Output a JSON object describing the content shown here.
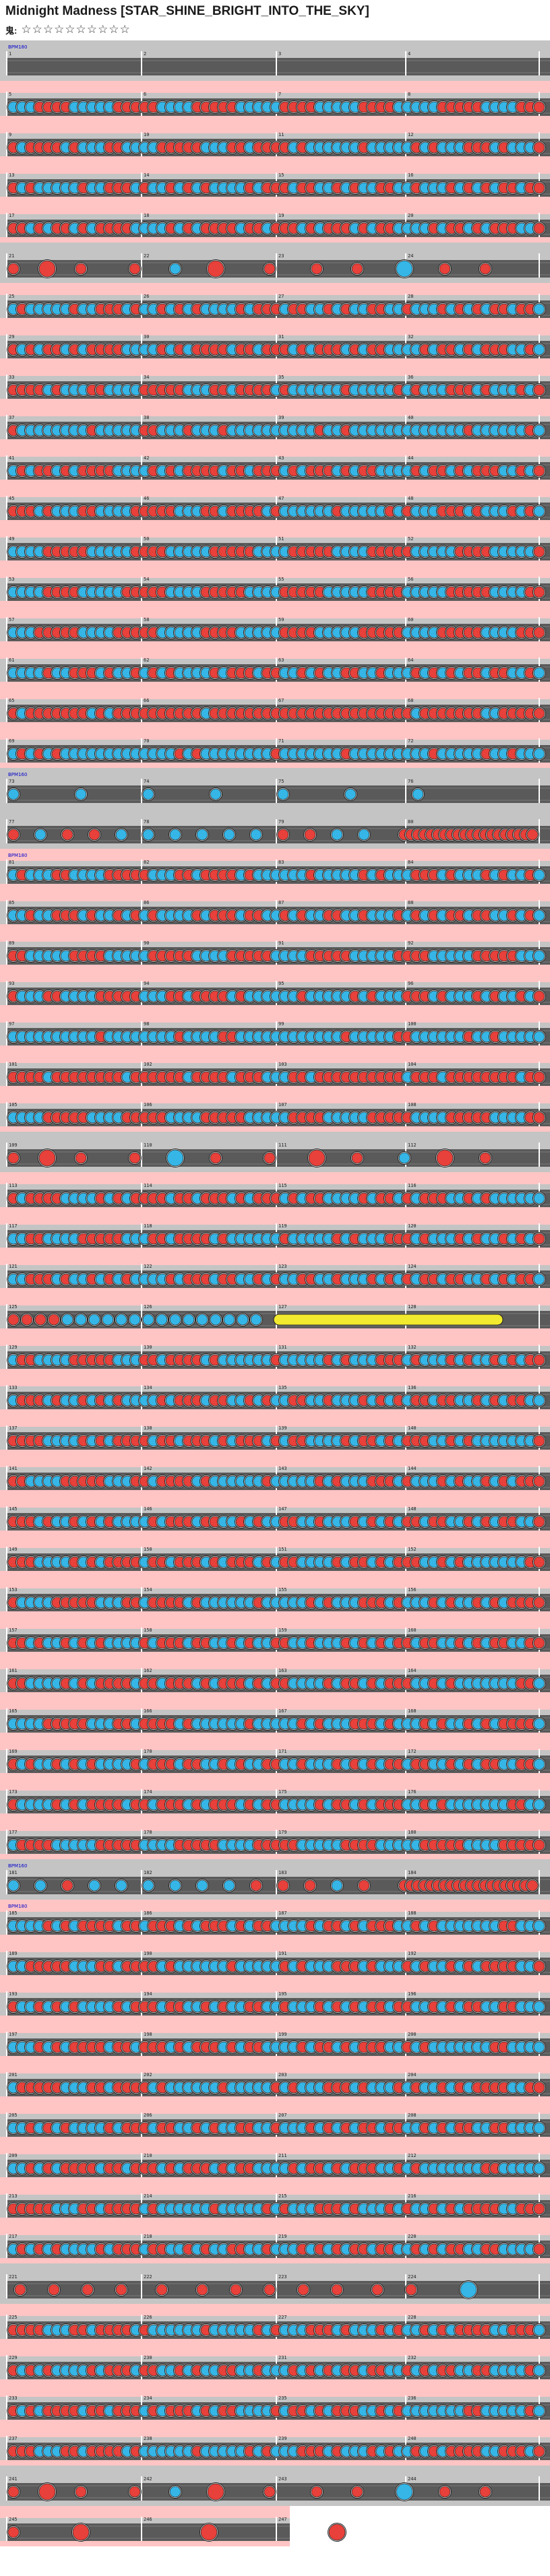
{
  "song": {
    "title": "Midnight Madness [STAR_SHINE_BRIGHT_INTO_THE_SKY]",
    "difficulty_label": "鬼:",
    "stars": "☆☆☆☆☆☆☆☆☆☆"
  },
  "chart_data": {
    "type": "other",
    "rows": [
      {
        "pattern": "empty",
        "notes": "",
        "tags": [
          "BPM180"
        ]
      },
      {
        "pattern": "mixed",
        "notes": "",
        "tags": []
      },
      {
        "pattern": "dense",
        "notes": "",
        "tags": []
      },
      {
        "pattern": "dense",
        "notes": "",
        "tags": []
      },
      {
        "pattern": "dense",
        "notes": "",
        "tags": []
      },
      {
        "pattern": "sparse",
        "notes": "",
        "tags": []
      },
      {
        "pattern": "dense",
        "notes": "",
        "tags": []
      },
      {
        "pattern": "dense",
        "notes": "",
        "tags": []
      },
      {
        "pattern": "dense",
        "notes": "",
        "tags": []
      },
      {
        "pattern": "bluerun",
        "notes": "",
        "tags": []
      },
      {
        "pattern": "dense",
        "notes": "",
        "tags": []
      },
      {
        "pattern": "dense",
        "notes": "",
        "tags": []
      },
      {
        "pattern": "mixed",
        "notes": "",
        "tags": []
      },
      {
        "pattern": "mixed",
        "notes": "",
        "tags": []
      },
      {
        "pattern": "mixed",
        "notes": "",
        "tags": []
      },
      {
        "pattern": "dense",
        "notes": "",
        "tags": []
      },
      {
        "pattern": "redrun",
        "notes": "",
        "tags": []
      },
      {
        "pattern": "bluerun",
        "notes": "",
        "tags": []
      },
      {
        "pattern": "light",
        "notes": "",
        "tags": [
          "BPM160"
        ]
      },
      {
        "pattern": "roll_end",
        "notes": "",
        "tags": []
      },
      {
        "pattern": "dense",
        "notes": "",
        "tags": [
          "BPM180"
        ]
      },
      {
        "pattern": "dense",
        "notes": "",
        "tags": []
      },
      {
        "pattern": "mixed",
        "notes": "",
        "tags": []
      },
      {
        "pattern": "dense",
        "notes": "",
        "tags": []
      },
      {
        "pattern": "bluerun",
        "notes": "",
        "tags": []
      },
      {
        "pattern": "redrun",
        "notes": "",
        "tags": []
      },
      {
        "pattern": "mixed",
        "notes": "",
        "tags": []
      },
      {
        "pattern": "sparse_big",
        "notes": "",
        "tags": []
      },
      {
        "pattern": "dense",
        "notes": "",
        "tags": []
      },
      {
        "pattern": "dense",
        "notes": "",
        "tags": []
      },
      {
        "pattern": "dense",
        "notes": "",
        "tags": []
      },
      {
        "pattern": "balloon",
        "notes": "",
        "tags": []
      },
      {
        "pattern": "dense",
        "notes": "",
        "tags": []
      },
      {
        "pattern": "dense",
        "notes": "",
        "tags": []
      },
      {
        "pattern": "dense",
        "notes": "",
        "tags": []
      },
      {
        "pattern": "dense",
        "notes": "",
        "tags": []
      },
      {
        "pattern": "dense",
        "notes": "",
        "tags": []
      },
      {
        "pattern": "dense",
        "notes": "",
        "tags": []
      },
      {
        "pattern": "dense",
        "notes": "",
        "tags": []
      },
      {
        "pattern": "dense",
        "notes": "",
        "tags": []
      },
      {
        "pattern": "dense",
        "notes": "",
        "tags": []
      },
      {
        "pattern": "dense",
        "notes": "",
        "tags": []
      },
      {
        "pattern": "dense",
        "notes": "",
        "tags": []
      },
      {
        "pattern": "dense",
        "notes": "",
        "tags": []
      },
      {
        "pattern": "mixed",
        "notes": "",
        "tags": []
      },
      {
        "pattern": "roll_end",
        "notes": "",
        "tags": [
          "BPM160"
        ]
      },
      {
        "pattern": "dense",
        "notes": "",
        "tags": [
          "BPM180"
        ]
      },
      {
        "pattern": "dense",
        "notes": "",
        "tags": []
      },
      {
        "pattern": "dense",
        "notes": "",
        "tags": []
      },
      {
        "pattern": "dense",
        "notes": "",
        "tags": []
      },
      {
        "pattern": "dense",
        "notes": "",
        "tags": []
      },
      {
        "pattern": "dense",
        "notes": "",
        "tags": []
      },
      {
        "pattern": "dense",
        "notes": "",
        "tags": []
      },
      {
        "pattern": "dense",
        "notes": "",
        "tags": []
      },
      {
        "pattern": "dense",
        "notes": "",
        "tags": []
      },
      {
        "pattern": "sparse_big_end",
        "notes": "",
        "tags": []
      },
      {
        "pattern": "dense",
        "notes": "",
        "tags": []
      },
      {
        "pattern": "dense",
        "notes": "",
        "tags": []
      },
      {
        "pattern": "dense",
        "notes": "",
        "tags": []
      },
      {
        "pattern": "dense",
        "notes": "",
        "tags": []
      },
      {
        "pattern": "sparse",
        "notes": "",
        "tags": []
      },
      {
        "pattern": "final",
        "notes": "",
        "tags": []
      }
    ],
    "colors": {
      "don": "#e8403a",
      "ka": "#35b6e6",
      "lane_bg": "#5a5a5a",
      "row_bg": "#c4c4c4",
      "gogo_bg": "#ffc4c4",
      "drumroll": "#f2ea2e",
      "tag": "#0000cc"
    },
    "title": "",
    "xlabel": "",
    "ylabel": ""
  }
}
